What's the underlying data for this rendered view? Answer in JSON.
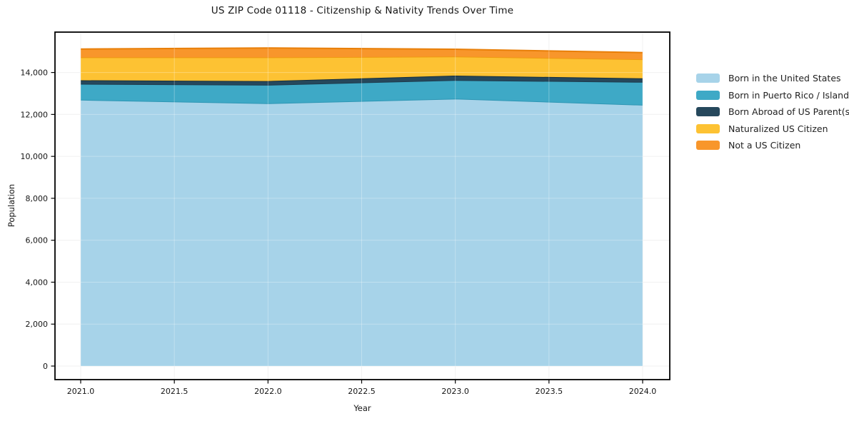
{
  "chart_data": {
    "type": "area",
    "stacked": true,
    "title": "US ZIP Code 01118 - Citizenship & Nativity Trends Over Time",
    "xlabel": "Year",
    "ylabel": "Population",
    "grid": true,
    "legend_position": "right-outside",
    "x": [
      2021,
      2022,
      2023,
      2024
    ],
    "x_tick_values": [
      2021.0,
      2021.5,
      2022.0,
      2022.5,
      2023.0,
      2023.5,
      2024.0
    ],
    "x_tick_labels": [
      "2021.0",
      "2021.5",
      "2022.0",
      "2022.5",
      "2023.0",
      "2023.5",
      "2024.0"
    ],
    "y_tick_values": [
      0,
      2000,
      4000,
      6000,
      8000,
      10000,
      12000,
      14000
    ],
    "y_tick_labels": [
      "0",
      "2,000",
      "4,000",
      "6,000",
      "8,000",
      "10,000",
      "12,000",
      "14,000"
    ],
    "xlim": [
      2020.86,
      2024.14
    ],
    "ylim": [
      -760,
      15930
    ],
    "series": [
      {
        "name": "Born in the United States",
        "color": "#a7d3e9",
        "edge": "#2e96b4",
        "values": [
          12700,
          12530,
          12750,
          12460
        ]
      },
      {
        "name": "Born in Puerto Rico / Islands",
        "color": "#3ea9c6",
        "edge": "#1d3c4e",
        "values": [
          760,
          880,
          890,
          1090
        ]
      },
      {
        "name": "Born Abroad of US Parent(s)",
        "color": "#26485c",
        "edge": "#152e3d",
        "values": [
          170,
          180,
          210,
          170
        ]
      },
      {
        "name": "Naturalized US Citizen",
        "color": "#fdc233",
        "edge": "#ef9a10",
        "values": [
          1090,
          1130,
          910,
          910
        ]
      },
      {
        "name": "Not a US Citizen",
        "color": "#f8962b",
        "edge": "#e87f09",
        "values": [
          400,
          450,
          350,
          320
        ]
      }
    ],
    "totals": [
      15120,
      15170,
      15110,
      14950
    ],
    "spine_color": "#000000",
    "gridline_color": "#ececec",
    "tick_label_color": "#151515"
  }
}
